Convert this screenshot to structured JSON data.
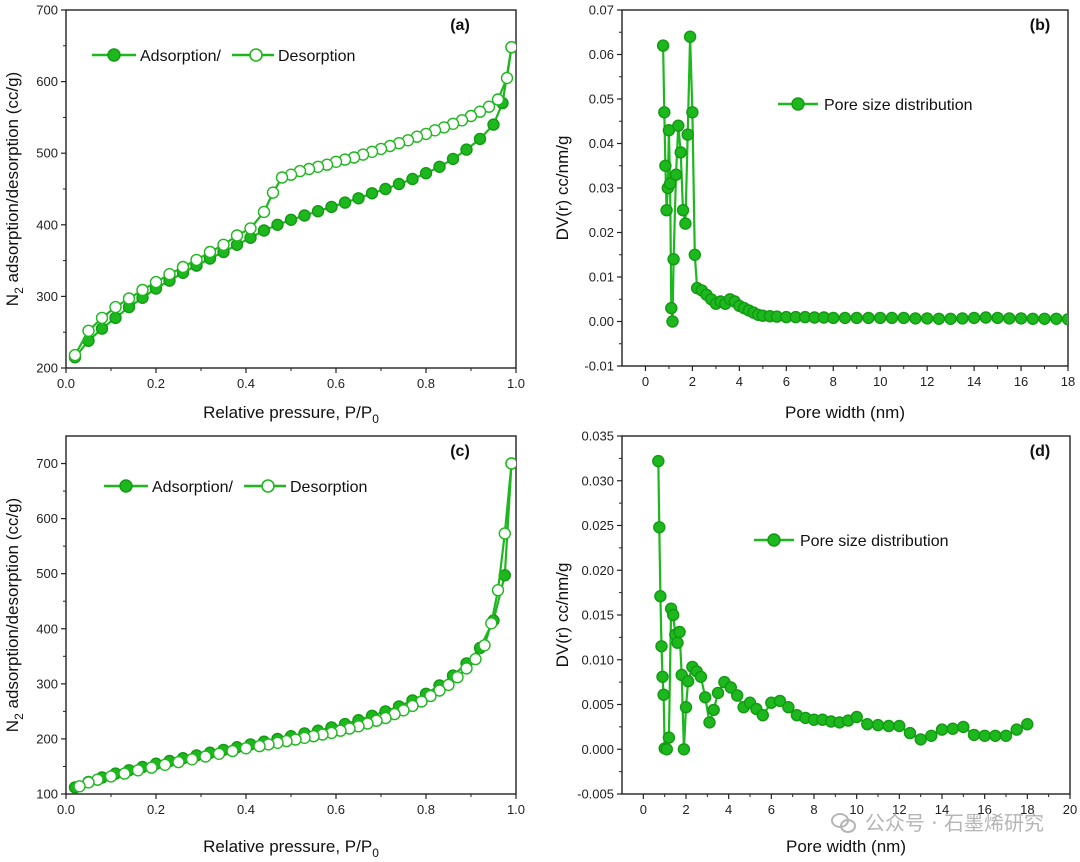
{
  "chart_data": [
    {
      "id": "a",
      "panel_label": "(a)",
      "type": "line",
      "xlabel": "Relative pressure, P/P",
      "xlabel_sub": "0",
      "ylabel_pre": "N",
      "ylabel_sub": "2",
      "ylabel_post": " adsorption/desorption (cc/g)",
      "xlim": [
        0.0,
        1.0
      ],
      "ylim": [
        200,
        700
      ],
      "xticks": [
        0.0,
        0.2,
        0.4,
        0.6,
        0.8,
        1.0
      ],
      "xtick_labels": [
        "0.0",
        "0.2",
        "0.4",
        "0.6",
        "0.8",
        "1.0"
      ],
      "yticks": [
        200,
        300,
        400,
        500,
        600,
        700
      ],
      "ytick_labels": [
        "200",
        "300",
        "400",
        "500",
        "600",
        "700"
      ],
      "legend": {
        "position": "top-left",
        "entries": [
          "Adsorption/",
          "Desorption"
        ]
      },
      "series": [
        {
          "name": "Adsorption",
          "marker": "filled",
          "x": [
            0.02,
            0.05,
            0.08,
            0.11,
            0.14,
            0.17,
            0.2,
            0.23,
            0.26,
            0.29,
            0.32,
            0.35,
            0.38,
            0.41,
            0.44,
            0.47,
            0.5,
            0.53,
            0.56,
            0.59,
            0.62,
            0.65,
            0.68,
            0.71,
            0.74,
            0.77,
            0.8,
            0.83,
            0.86,
            0.89,
            0.92,
            0.95,
            0.97,
            0.99
          ],
          "y": [
            215,
            238,
            255,
            270,
            285,
            298,
            311,
            322,
            333,
            343,
            353,
            362,
            372,
            382,
            392,
            400,
            407,
            413,
            419,
            425,
            431,
            437,
            444,
            450,
            457,
            464,
            472,
            481,
            492,
            505,
            520,
            540,
            570,
            648
          ]
        },
        {
          "name": "Desorption",
          "marker": "open",
          "x": [
            0.99,
            0.98,
            0.96,
            0.94,
            0.92,
            0.9,
            0.88,
            0.86,
            0.84,
            0.82,
            0.8,
            0.78,
            0.76,
            0.74,
            0.72,
            0.7,
            0.68,
            0.66,
            0.64,
            0.62,
            0.6,
            0.58,
            0.56,
            0.54,
            0.52,
            0.5,
            0.48,
            0.46,
            0.44,
            0.41,
            0.38,
            0.35,
            0.32,
            0.29,
            0.26,
            0.23,
            0.2,
            0.17,
            0.14,
            0.11,
            0.08,
            0.05,
            0.02
          ],
          "y": [
            648,
            605,
            575,
            565,
            558,
            552,
            546,
            541,
            536,
            532,
            527,
            523,
            518,
            514,
            510,
            506,
            502,
            498,
            494,
            491,
            488,
            484,
            481,
            478,
            475,
            470,
            466,
            445,
            418,
            395,
            385,
            372,
            362,
            351,
            341,
            331,
            320,
            309,
            297,
            285,
            270,
            252,
            218
          ]
        }
      ]
    },
    {
      "id": "b",
      "panel_label": "(b)",
      "type": "line",
      "xlabel": "Pore width (nm)",
      "ylabel": "DV(r) cc/nm/g",
      "xlim": [
        -1,
        18
      ],
      "ylim": [
        -0.01,
        0.07
      ],
      "xticks": [
        0,
        2,
        4,
        6,
        8,
        10,
        12,
        14,
        16,
        18
      ],
      "xtick_labels": [
        "0",
        "2",
        "4",
        "6",
        "8",
        "10",
        "12",
        "14",
        "16",
        "18"
      ],
      "yticks": [
        -0.01,
        0.0,
        0.01,
        0.02,
        0.03,
        0.04,
        0.05,
        0.06,
        0.07
      ],
      "ytick_labels": [
        "-0.01",
        "0.00",
        "0.01",
        "0.02",
        "0.03",
        "0.04",
        "0.05",
        "0.06",
        "0.07"
      ],
      "legend": {
        "position": "top-right",
        "entries": [
          "Pore size distribution"
        ]
      },
      "series": [
        {
          "name": "Pore size distribution",
          "marker": "filled",
          "x": [
            0.75,
            0.8,
            0.85,
            0.9,
            0.95,
            1.0,
            1.05,
            1.1,
            1.15,
            1.2,
            1.3,
            1.4,
            1.5,
            1.6,
            1.7,
            1.8,
            1.9,
            2.0,
            2.1,
            2.2,
            2.4,
            2.6,
            2.8,
            3.0,
            3.2,
            3.4,
            3.6,
            3.8,
            4.0,
            4.2,
            4.4,
            4.6,
            4.8,
            5.0,
            5.3,
            5.6,
            6.0,
            6.4,
            6.8,
            7.2,
            7.6,
            8.0,
            8.5,
            9.0,
            9.5,
            10.0,
            10.5,
            11.0,
            11.5,
            12.0,
            12.5,
            13.0,
            13.5,
            14.0,
            14.5,
            15.0,
            15.5,
            16.0,
            16.5,
            17.0,
            17.5,
            18.0
          ],
          "y": [
            0.062,
            0.047,
            0.035,
            0.025,
            0.03,
            0.043,
            0.031,
            0.003,
            0.0,
            0.014,
            0.033,
            0.044,
            0.038,
            0.025,
            0.022,
            0.042,
            0.064,
            0.047,
            0.015,
            0.0075,
            0.007,
            0.006,
            0.005,
            0.004,
            0.0045,
            0.004,
            0.005,
            0.0045,
            0.0035,
            0.003,
            0.0025,
            0.002,
            0.0015,
            0.0013,
            0.0012,
            0.0011,
            0.001,
            0.001,
            0.001,
            0.0009,
            0.0009,
            0.0008,
            0.0008,
            0.0008,
            0.0008,
            0.0008,
            0.0008,
            0.0008,
            0.0007,
            0.0007,
            0.0006,
            0.0006,
            0.0007,
            0.0008,
            0.0009,
            0.0008,
            0.0007,
            0.0007,
            0.0006,
            0.0006,
            0.0006,
            0.0005
          ]
        }
      ]
    },
    {
      "id": "c",
      "panel_label": "(c)",
      "type": "line",
      "xlabel": "Relative pressure, P/P",
      "xlabel_sub": "0",
      "ylabel_pre": "N",
      "ylabel_sub": "2",
      "ylabel_post": " adsorption/desorption (cc/g)",
      "xlim": [
        0.0,
        1.0
      ],
      "ylim": [
        100,
        750
      ],
      "xticks": [
        0.0,
        0.2,
        0.4,
        0.6,
        0.8,
        1.0
      ],
      "xtick_labels": [
        "0.0",
        "0.2",
        "0.4",
        "0.6",
        "0.8",
        "1.0"
      ],
      "yticks": [
        100,
        200,
        300,
        400,
        500,
        600,
        700
      ],
      "ytick_labels": [
        "100",
        "200",
        "300",
        "400",
        "500",
        "600",
        "700"
      ],
      "legend": {
        "position": "top-left",
        "entries": [
          "Adsorption/",
          "Desorption"
        ]
      },
      "series": [
        {
          "name": "Adsorption",
          "marker": "filled",
          "x": [
            0.02,
            0.05,
            0.08,
            0.11,
            0.14,
            0.17,
            0.2,
            0.23,
            0.26,
            0.29,
            0.32,
            0.35,
            0.38,
            0.41,
            0.44,
            0.47,
            0.5,
            0.53,
            0.56,
            0.59,
            0.62,
            0.65,
            0.68,
            0.71,
            0.74,
            0.77,
            0.8,
            0.83,
            0.86,
            0.89,
            0.92,
            0.95,
            0.975,
            0.99
          ],
          "y": [
            112,
            122,
            130,
            137,
            143,
            149,
            155,
            160,
            165,
            170,
            175,
            180,
            185,
            190,
            195,
            200,
            205,
            210,
            215,
            221,
            227,
            234,
            242,
            250,
            259,
            270,
            282,
            297,
            315,
            337,
            365,
            415,
            497,
            700
          ]
        },
        {
          "name": "Desorption",
          "marker": "open",
          "x": [
            0.99,
            0.975,
            0.96,
            0.945,
            0.93,
            0.91,
            0.89,
            0.87,
            0.85,
            0.83,
            0.81,
            0.79,
            0.77,
            0.75,
            0.73,
            0.71,
            0.69,
            0.67,
            0.65,
            0.63,
            0.61,
            0.59,
            0.57,
            0.55,
            0.53,
            0.51,
            0.49,
            0.47,
            0.45,
            0.43,
            0.4,
            0.37,
            0.34,
            0.31,
            0.28,
            0.25,
            0.22,
            0.19,
            0.16,
            0.13,
            0.1,
            0.07,
            0.05,
            0.03
          ],
          "y": [
            700,
            573,
            470,
            410,
            370,
            345,
            328,
            312,
            298,
            288,
            278,
            268,
            260,
            252,
            245,
            238,
            233,
            228,
            223,
            219,
            215,
            211,
            208,
            205,
            202,
            199,
            196,
            193,
            190,
            187,
            183,
            178,
            173,
            168,
            163,
            158,
            153,
            148,
            143,
            137,
            132,
            126,
            121,
            114
          ]
        }
      ]
    },
    {
      "id": "d",
      "panel_label": "(d)",
      "type": "line",
      "xlabel": "Pore width (nm)",
      "ylabel": "DV(r) cc/nm/g",
      "xlim": [
        -1,
        20
      ],
      "ylim": [
        -0.005,
        0.035
      ],
      "xticks": [
        0,
        2,
        4,
        6,
        8,
        10,
        12,
        14,
        16,
        18,
        20
      ],
      "xtick_labels": [
        "0",
        "2",
        "4",
        "6",
        "8",
        "10",
        "12",
        "14",
        "16",
        "18",
        "20"
      ],
      "yticks": [
        -0.005,
        0.0,
        0.005,
        0.01,
        0.015,
        0.02,
        0.025,
        0.03,
        0.035
      ],
      "ytick_labels": [
        "-0.005",
        "0.000",
        "0.005",
        "0.010",
        "0.015",
        "0.020",
        "0.025",
        "0.030",
        "0.035"
      ],
      "legend": {
        "position": "top-right",
        "entries": [
          "Pore size distribution"
        ]
      },
      "series": [
        {
          "name": "Pore size distribution",
          "marker": "filled",
          "x": [
            0.7,
            0.75,
            0.8,
            0.85,
            0.9,
            0.95,
            1.0,
            1.1,
            1.2,
            1.3,
            1.4,
            1.5,
            1.6,
            1.7,
            1.8,
            1.9,
            2.0,
            2.1,
            2.3,
            2.5,
            2.7,
            2.9,
            3.1,
            3.3,
            3.5,
            3.8,
            4.1,
            4.4,
            4.7,
            5.0,
            5.3,
            5.6,
            6.0,
            6.4,
            6.8,
            7.2,
            7.6,
            8.0,
            8.4,
            8.8,
            9.2,
            9.6,
            10.0,
            10.5,
            11.0,
            11.5,
            12.0,
            12.5,
            13.0,
            13.5,
            14.0,
            14.5,
            15.0,
            15.5,
            16.0,
            16.5,
            17.0,
            17.5,
            18.0
          ],
          "y": [
            0.0322,
            0.0248,
            0.0171,
            0.0115,
            0.0081,
            0.0061,
            0.0001,
            0.0,
            0.0013,
            0.0157,
            0.015,
            0.0128,
            0.0119,
            0.0131,
            0.0083,
            0.0,
            0.0047,
            0.0076,
            0.0092,
            0.0087,
            0.0081,
            0.0058,
            0.003,
            0.0044,
            0.0063,
            0.0075,
            0.0069,
            0.006,
            0.0047,
            0.0052,
            0.0045,
            0.0038,
            0.0052,
            0.0054,
            0.0047,
            0.0038,
            0.0035,
            0.0033,
            0.0033,
            0.0031,
            0.003,
            0.0032,
            0.0036,
            0.0028,
            0.0027,
            0.0026,
            0.0026,
            0.0018,
            0.0011,
            0.0015,
            0.0022,
            0.0023,
            0.0025,
            0.0016,
            0.0015,
            0.0015,
            0.0015,
            0.0022,
            0.0028
          ]
        }
      ]
    }
  ],
  "watermark": {
    "text": "公众号 · 石墨烯研究",
    "icon": "wechat-icon"
  },
  "colors": {
    "line": "#1db81d",
    "marker_fill": "#1db81d",
    "marker_edge": "#129a12",
    "open_fill": "#ffffff",
    "axis": "#222222"
  }
}
